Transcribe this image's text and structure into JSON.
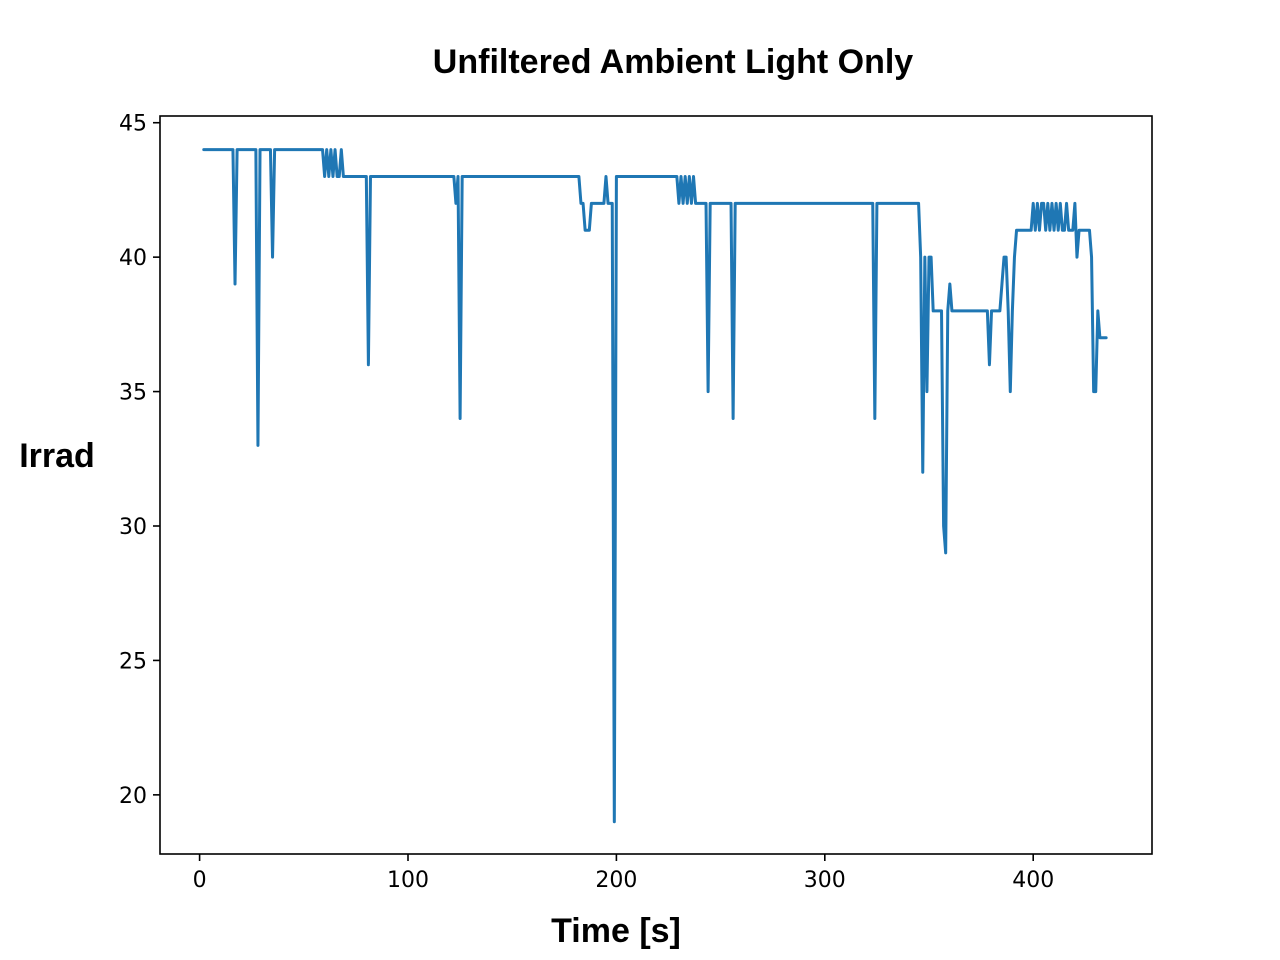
{
  "chart_data": {
    "type": "line",
    "title": "Unfiltered Ambient Light Only",
    "xlabel": "Time  [s]",
    "ylabel": "Irrad",
    "xlim": [
      -19,
      457
    ],
    "ylim": [
      17.8,
      45.25
    ],
    "xticks": [
      0,
      100,
      200,
      300,
      400
    ],
    "yticks": [
      20,
      25,
      30,
      35,
      40,
      45
    ],
    "grid": false,
    "legend": "none",
    "colors": {
      "series": "#1f77b4",
      "axes": "#000000",
      "background": "#ffffff"
    },
    "series": [
      {
        "name": "Irrad",
        "x": [
          2,
          16,
          17,
          18,
          19,
          27,
          28,
          29,
          30,
          34,
          35,
          36,
          59,
          60,
          61,
          62,
          63,
          64,
          65,
          66,
          67,
          68,
          69,
          70,
          71,
          72,
          80,
          81,
          82,
          83,
          122,
          123,
          124,
          125,
          126,
          182,
          183,
          184,
          185,
          186,
          187,
          188,
          194,
          195,
          196,
          197,
          198,
          199,
          200,
          201,
          229,
          230,
          231,
          232,
          233,
          234,
          235,
          236,
          237,
          238,
          239,
          240,
          241,
          242,
          243,
          244,
          245,
          246,
          255,
          256,
          257,
          258,
          323,
          324,
          325,
          326,
          345,
          346,
          347,
          348,
          349,
          350,
          351,
          352,
          353,
          354,
          355,
          356,
          357,
          358,
          359,
          360,
          361,
          362,
          363,
          364,
          377,
          378,
          379,
          380,
          381,
          382,
          383,
          384,
          385,
          386,
          387,
          388,
          389,
          390,
          391,
          392,
          399,
          400,
          401,
          402,
          403,
          404,
          405,
          406,
          407,
          408,
          409,
          410,
          411,
          412,
          413,
          414,
          415,
          416,
          417,
          418,
          419,
          420,
          421,
          422,
          427,
          428,
          429,
          430,
          431,
          432,
          433,
          434,
          435
        ],
        "y": [
          44,
          44,
          39,
          44,
          44,
          44,
          33,
          44,
          44,
          44,
          40,
          44,
          44,
          43,
          44,
          43,
          44,
          43,
          44,
          43,
          43,
          44,
          43,
          43,
          43,
          43,
          43,
          36,
          43,
          43,
          43,
          42,
          43,
          34,
          43,
          43,
          42,
          42,
          41,
          41,
          41,
          42,
          42,
          43,
          42,
          42,
          42,
          19,
          43,
          43,
          43,
          42,
          43,
          42,
          43,
          42,
          43,
          42,
          43,
          42,
          42,
          42,
          42,
          42,
          42,
          35,
          42,
          42,
          42,
          34,
          42,
          42,
          42,
          34,
          42,
          42,
          42,
          40,
          32,
          40,
          35,
          40,
          40,
          38,
          38,
          38,
          38,
          38,
          30,
          29,
          38,
          39,
          38,
          38,
          38,
          38,
          38,
          38,
          36,
          38,
          38,
          38,
          38,
          38,
          39,
          40,
          40,
          38,
          35,
          38,
          40,
          41,
          41,
          42,
          41,
          42,
          41,
          42,
          42,
          41,
          42,
          41,
          42,
          41,
          42,
          41,
          42,
          41,
          41,
          42,
          41,
          41,
          41,
          42,
          40,
          41,
          41,
          40,
          35,
          35,
          38,
          37,
          37,
          37,
          37
        ]
      }
    ]
  }
}
